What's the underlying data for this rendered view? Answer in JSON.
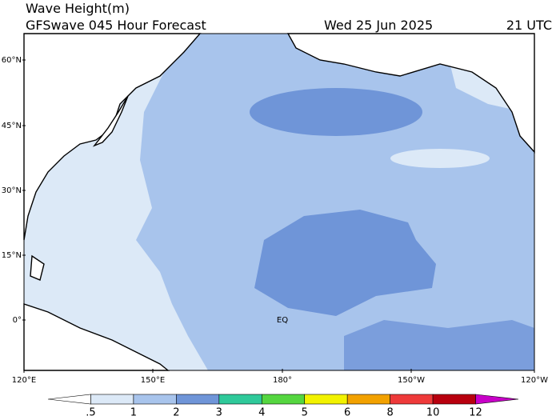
{
  "header": {
    "title": "Wave Height(m)",
    "subtitle": "GFSwave 045 Hour Forecast",
    "date": "Wed 25 Jun 2025",
    "time": "21 UTC"
  },
  "map": {
    "lat_labels": [
      "60°N",
      "45°N",
      "30°N",
      "15°N",
      "0°"
    ],
    "lon_labels": [
      "120°E",
      "150°E",
      "180°",
      "150°W",
      "120°W"
    ],
    "equator_label": "EQ"
  },
  "colorbar": {
    "ticks": [
      {
        "value": 0.5,
        "label": ".5"
      },
      1,
      2,
      3,
      4,
      5,
      6,
      8,
      10,
      12
    ],
    "colors": [
      "#ffffff",
      "#dce9f7",
      "#a8c4ec",
      "#6f95d8",
      "#2fc99a",
      "#55d640",
      "#f2f200",
      "#f2a100",
      "#ee3a3a",
      "#b8000e",
      "#c800c8"
    ]
  }
}
